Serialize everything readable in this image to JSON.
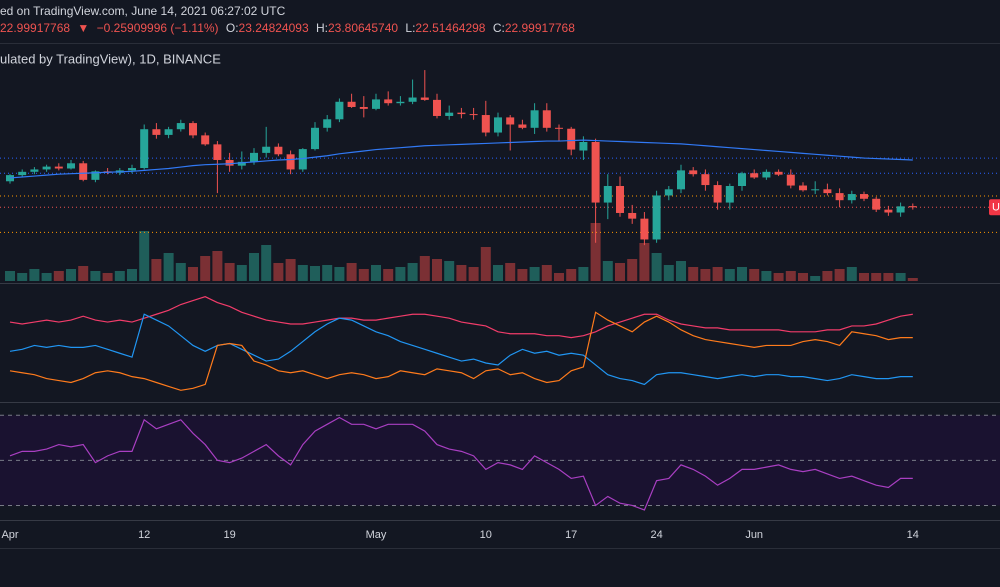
{
  "header": {
    "line1": "ed on TradingView.com, June 14, 2021 06:27:02 UTC",
    "last": "22.99917768",
    "arrow": "▼",
    "change": "−0.25909996 (−1.11%)",
    "ohlc": [
      {
        "label": "O:",
        "value": "23.24824093"
      },
      {
        "label": "H:",
        "value": "23.80645740"
      },
      {
        "label": "L:",
        "value": "22.51464298"
      },
      {
        "label": "C:",
        "value": "22.99917768"
      }
    ],
    "line3": "ulated by TradingView), 1D, BINANCE",
    "price_tag": "U"
  },
  "chart_data": [
    {
      "type": "candlestick",
      "categories": [
        "Apr",
        null,
        null,
        null,
        null,
        null,
        null,
        null,
        null,
        null,
        null,
        "12",
        null,
        null,
        null,
        null,
        null,
        null,
        "19",
        null,
        null,
        null,
        null,
        null,
        null,
        null,
        null,
        null,
        null,
        null,
        "May",
        null,
        null,
        null,
        null,
        null,
        null,
        null,
        null,
        "10",
        null,
        null,
        null,
        null,
        null,
        null,
        "17",
        null,
        null,
        null,
        null,
        null,
        null,
        "24",
        null,
        null,
        null,
        null,
        null,
        null,
        null,
        "Jun",
        null,
        null,
        null,
        null,
        null,
        null,
        null,
        null,
        null,
        null,
        null,
        null,
        "14"
      ],
      "open": [
        28.5,
        29.8,
        30.5,
        31,
        31.6,
        31.2,
        32.3,
        28.8,
        30.6,
        30.3,
        30.8,
        31.3,
        39.5,
        38.3,
        39.5,
        40.8,
        38.2,
        36.3,
        33,
        31.8,
        32.6,
        34.5,
        35.8,
        34.2,
        31,
        35.3,
        39.8,
        41.6,
        45.3,
        44.2,
        43.8,
        45.8,
        45,
        45.3,
        46.2,
        45.7,
        42.3,
        43,
        42.7,
        42.5,
        38.8,
        42,
        40.5,
        39.8,
        43.5,
        39.8,
        39.6,
        35,
        36.8,
        24,
        27.5,
        21.8,
        20.6,
        16.2,
        25.5,
        26.8,
        30.8,
        30,
        27.7,
        24,
        27.5,
        30.2,
        29.3,
        30.5,
        29.9,
        27.6,
        26.6,
        26.8,
        26,
        24.5,
        25.8,
        24.8,
        22.5,
        21.9,
        23.24824093
      ],
      "high": [
        30,
        31,
        31.5,
        32,
        32.3,
        33,
        32.8,
        30.8,
        31.3,
        31.3,
        32,
        40.5,
        40.8,
        40,
        41.5,
        41.2,
        38.8,
        37,
        34.5,
        34.8,
        35.5,
        40,
        36.5,
        35,
        35.5,
        41,
        42.5,
        46,
        47,
        46.5,
        47,
        47.5,
        46.5,
        50,
        52,
        47,
        44.5,
        44,
        44,
        45.5,
        43,
        42.5,
        41.5,
        45,
        45,
        40.5,
        40,
        38,
        37.5,
        30,
        29.5,
        23.5,
        22,
        26.5,
        27.5,
        32,
        31.5,
        31,
        28.5,
        28,
        30.5,
        31,
        31,
        31,
        31,
        28.3,
        28.5,
        28,
        27,
        26.5,
        26.3,
        25.2,
        23.3,
        24,
        23.8064574
      ],
      "low": [
        28,
        29.3,
        30,
        30.5,
        30.8,
        31,
        28.5,
        28.3,
        30,
        29.8,
        30.2,
        31,
        37.5,
        37.6,
        39,
        37.6,
        36,
        26,
        30.5,
        31,
        32,
        33.5,
        33.8,
        30,
        30.5,
        35,
        39,
        41,
        44,
        42,
        43.5,
        44.5,
        44.5,
        44.8,
        45.5,
        41.8,
        41.5,
        41.8,
        41.5,
        38,
        38,
        35,
        39.5,
        38.5,
        39,
        37,
        34,
        33,
        15.5,
        20.5,
        21,
        19.5,
        15,
        15.5,
        24.5,
        26,
        29.5,
        26.5,
        22.5,
        22.5,
        26.5,
        29,
        28.8,
        29.6,
        27,
        26.3,
        25.8,
        25.5,
        23,
        23.8,
        24.3,
        22,
        21.2,
        21,
        22.51464298
      ],
      "close": [
        29.8,
        30.5,
        31,
        31.6,
        31.2,
        32.3,
        28.8,
        30.6,
        30.3,
        30.8,
        31.3,
        39.5,
        38.3,
        39.5,
        40.8,
        38.2,
        36.3,
        33,
        31.8,
        32.6,
        34.5,
        35.8,
        34.2,
        31,
        35.3,
        39.8,
        41.6,
        45.3,
        44.2,
        43.8,
        45.8,
        45,
        45.3,
        46.2,
        45.7,
        42.3,
        43,
        42.7,
        42.5,
        38.8,
        42,
        40.5,
        39.8,
        43.5,
        39.8,
        39.6,
        35.2,
        36.8,
        24,
        27.5,
        21.8,
        20.6,
        16.2,
        25.5,
        26.8,
        30.8,
        30,
        27.7,
        24,
        27.5,
        30.2,
        29.3,
        30.5,
        29.9,
        27.6,
        26.6,
        26.8,
        26,
        24.5,
        25.8,
        24.8,
        22.5,
        21.9,
        23.2,
        22.99917768
      ],
      "up_color": "#26a69a",
      "down_color": "#ef5350",
      "ma": {
        "color": "#3179f5",
        "values": [
          29.2,
          29.4,
          29.6,
          29.8,
          30,
          30.1,
          30.2,
          30.3,
          30.4,
          30.5,
          30.6,
          30.8,
          31,
          31.2,
          31.5,
          31.8,
          32,
          32.1,
          32.2,
          32.4,
          32.6,
          32.8,
          33,
          33.1,
          33.3,
          33.6,
          33.9,
          34.3,
          34.6,
          34.9,
          35.2,
          35.4,
          35.6,
          35.8,
          36,
          36.1,
          36.2,
          36.3,
          36.4,
          36.5,
          36.6,
          36.7,
          36.8,
          36.9,
          37,
          37,
          37.1,
          37.2,
          37.1,
          37,
          36.9,
          36.8,
          36.7,
          36.6,
          36.5,
          36.4,
          36.2,
          36,
          35.8,
          35.6,
          35.4,
          35.2,
          35,
          34.8,
          34.6,
          34.4,
          34.2,
          34,
          33.8,
          33.6,
          33.4,
          33.3,
          33.2,
          33.1,
          33
        ]
      },
      "levels": [
        {
          "value": 33.4,
          "color": "#2962ff"
        },
        {
          "value": 30.2,
          "color": "#2962ff"
        },
        {
          "value": 25.4,
          "color": "#ff9800"
        },
        {
          "value": 17.7,
          "color": "#ff9800"
        }
      ],
      "ylim": [
        7,
        57.3
      ]
    },
    {
      "type": "bar",
      "values": [
        10,
        8,
        12,
        8,
        10,
        12,
        15,
        10,
        8,
        10,
        12,
        50,
        22,
        28,
        18,
        14,
        25,
        30,
        18,
        16,
        28,
        36,
        18,
        22,
        16,
        15,
        16,
        14,
        18,
        12,
        16,
        12,
        14,
        18,
        25,
        22,
        20,
        16,
        14,
        34,
        16,
        18,
        12,
        14,
        16,
        8,
        12,
        14,
        58,
        20,
        18,
        22,
        38,
        28,
        16,
        20,
        14,
        12,
        14,
        12,
        14,
        12,
        10,
        8,
        10,
        8,
        5,
        10,
        12,
        14,
        8,
        8,
        8,
        8,
        3
      ],
      "up_color": "#1f5e5a",
      "down_color": "#7b3034",
      "ylim": [
        0,
        100
      ]
    },
    {
      "type": "line",
      "series": [
        {
          "color": "#f23c6a",
          "values": [
            41,
            40,
            41,
            42,
            41,
            42,
            44,
            42,
            41,
            42,
            41,
            43,
            45,
            47,
            50,
            52,
            54,
            51,
            49,
            46,
            44,
            42,
            41,
            40,
            40,
            41,
            42,
            43,
            43,
            42,
            42,
            43,
            44,
            45,
            45,
            44,
            43,
            41,
            40,
            39,
            36,
            35,
            35,
            35,
            34,
            34,
            33,
            34,
            36,
            39,
            41,
            43,
            45,
            45,
            42,
            40,
            39,
            38,
            38,
            37,
            37,
            37,
            37,
            37,
            36,
            36,
            36,
            37,
            37,
            39,
            39,
            40,
            42,
            44,
            45
          ]
        },
        {
          "color": "#2196f3",
          "values": [
            26,
            27,
            29,
            28,
            29,
            28,
            28,
            29,
            27,
            25,
            23,
            45,
            42,
            39,
            34,
            29,
            26,
            29,
            30,
            27,
            24,
            21,
            22,
            26,
            31,
            36,
            40,
            43,
            42,
            39,
            36,
            34,
            31,
            29,
            27,
            25,
            23,
            21,
            22,
            20,
            19,
            24,
            27,
            25,
            26,
            24,
            25,
            24,
            19,
            14,
            12,
            11,
            9,
            14,
            15,
            15,
            14,
            13,
            12,
            13,
            14,
            13,
            14,
            14,
            13,
            13,
            12,
            11,
            12,
            14,
            13,
            12,
            12,
            13,
            13
          ]
        },
        {
          "color": "#ff7b1c",
          "values": [
            16,
            15,
            14,
            12,
            11,
            10,
            12,
            15,
            16,
            15,
            13,
            12,
            10,
            8,
            6,
            7,
            9,
            29,
            30,
            29,
            21,
            19,
            16,
            15,
            16,
            14,
            12,
            14,
            15,
            14,
            12,
            13,
            16,
            15,
            14,
            17,
            16,
            15,
            12,
            16,
            17,
            14,
            15,
            12,
            10,
            11,
            16,
            18,
            46,
            42,
            39,
            36,
            41,
            44,
            41,
            37,
            34,
            32,
            31,
            30,
            29,
            28,
            29,
            29,
            29,
            31,
            32,
            31,
            29,
            36,
            35,
            34,
            32,
            33,
            33
          ]
        }
      ],
      "ylim": [
        0,
        60
      ]
    },
    {
      "type": "line",
      "series": [
        {
          "color": "#a93fc2",
          "values": [
            52,
            54,
            54,
            55,
            57,
            56,
            57,
            49,
            52,
            54,
            54,
            68,
            64,
            66,
            68,
            62,
            57,
            50,
            49,
            51,
            54,
            57,
            52,
            48,
            57,
            63,
            66,
            69,
            66,
            66,
            64,
            66,
            66,
            66,
            63,
            57,
            55,
            54,
            52,
            46,
            49,
            48,
            46,
            52,
            49,
            46,
            42,
            43,
            30,
            34,
            31,
            30,
            28,
            41,
            42,
            48,
            46,
            43,
            39,
            42,
            46,
            46,
            47,
            48,
            46,
            45,
            46,
            44,
            42,
            43,
            41,
            39,
            38,
            42,
            42
          ]
        }
      ],
      "levels": [
        70,
        50,
        30
      ],
      "band_color": "#1a1230",
      "ylim": [
        24,
        75
      ]
    }
  ]
}
